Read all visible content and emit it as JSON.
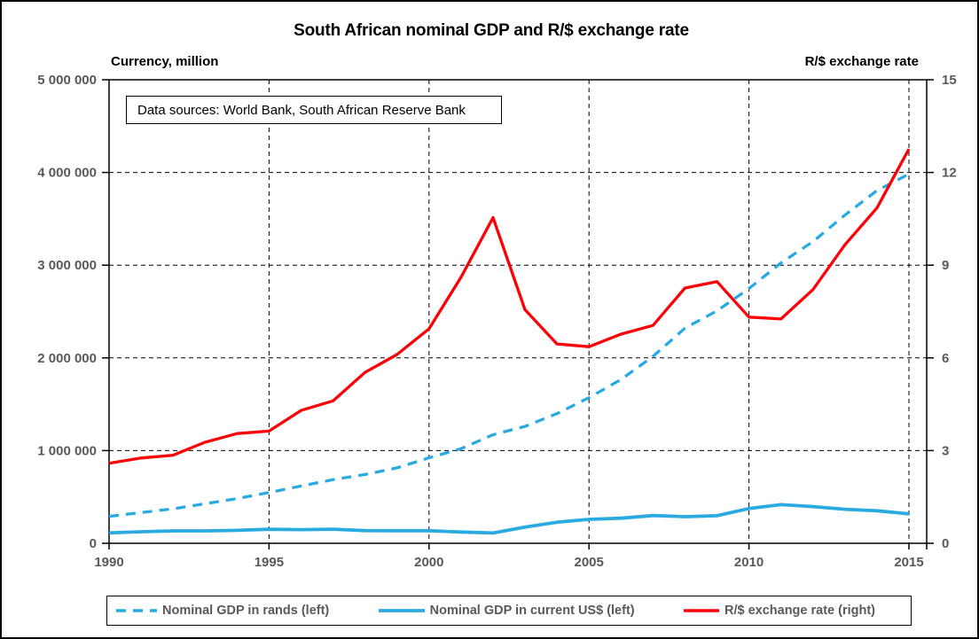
{
  "title": "South African nominal GDP and R/$ exchange rate",
  "note": {
    "text": "Data sources: World Bank, South African Reserve Bank"
  },
  "colors": {
    "blue": "#29abe2",
    "red": "#fb0007",
    "axis_text": "#595959",
    "grid": "#000000",
    "background": "#ffffff"
  },
  "chart_data": {
    "type": "line",
    "title": "South African nominal GDP and R/$ exchange rate",
    "x": [
      1990,
      1991,
      1992,
      1993,
      1994,
      1995,
      1996,
      1997,
      1998,
      1999,
      2000,
      2001,
      2002,
      2003,
      2004,
      2005,
      2006,
      2007,
      2008,
      2009,
      2010,
      2011,
      2012,
      2013,
      2014,
      2015
    ],
    "x_ticks": [
      1990,
      1995,
      2000,
      2005,
      2010,
      2015
    ],
    "x_tick_labels": [
      "1990",
      "1995",
      "2000",
      "2005",
      "2010",
      "2015"
    ],
    "left_axis": {
      "title": "Currency, million",
      "min": 0,
      "max": 5000000,
      "tick_values": [
        0,
        1000000,
        2000000,
        3000000,
        4000000,
        5000000
      ],
      "tick_labels": [
        "0",
        "1 000 000",
        "2 000 000",
        "3 000 000",
        "4 000 000",
        "5 000 000"
      ]
    },
    "right_axis": {
      "title": "R/$ exchange rate",
      "min": 0,
      "max": 15,
      "tick_values": [
        0,
        3,
        6,
        9,
        12,
        15
      ],
      "tick_labels": [
        "0",
        "3",
        "6",
        "9",
        "12",
        "15"
      ]
    },
    "grid": true,
    "legend_position": "bottom",
    "series": [
      {
        "name": "Nominal GDP in rands (left)",
        "axis": "left",
        "style": "dashed",
        "color": "#29abe2",
        "values": [
          290000,
          332000,
          372000,
          426000,
          482000,
          548000,
          618000,
          686000,
          742000,
          814000,
          922000,
          1020000,
          1171000,
          1261000,
          1399000,
          1571000,
          1767000,
          2016000,
          2320000,
          2508000,
          2748000,
          3024000,
          3254000,
          3540000,
          3805000,
          3983000
        ]
      },
      {
        "name": "Nominal GDP in current US$ (left)",
        "axis": "left",
        "style": "solid",
        "color": "#29abe2",
        "values": [
          112000,
          124000,
          134000,
          134000,
          140000,
          151000,
          147000,
          152000,
          137000,
          136000,
          136000,
          121000,
          111000,
          175000,
          228000,
          258000,
          271000,
          299000,
          287000,
          297000,
          375000,
          417000,
          396000,
          367000,
          351000,
          317000
        ]
      },
      {
        "name": "R/$ exchange rate (right)",
        "axis": "right",
        "style": "solid",
        "color": "#fb0007",
        "values": [
          2.59,
          2.76,
          2.85,
          3.27,
          3.55,
          3.63,
          4.3,
          4.61,
          5.53,
          6.11,
          6.94,
          8.61,
          10.54,
          7.56,
          6.45,
          6.36,
          6.77,
          7.05,
          8.26,
          8.47,
          7.32,
          7.26,
          8.21,
          9.66,
          10.85,
          12.76
        ]
      }
    ]
  }
}
